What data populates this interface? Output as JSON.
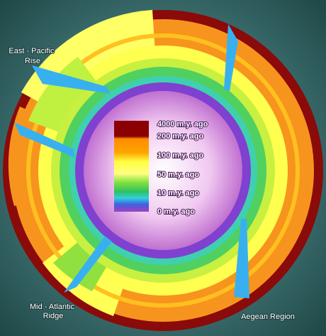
{
  "labels": {
    "east_pacific": [
      "East - Pacific",
      "Rise"
    ],
    "mid_atlantic": [
      "Mid - Atlantic",
      "Ridge"
    ],
    "aegean": "Aegean Region"
  },
  "legend": [
    "4000 m.y. ago",
    "200 m.y. ago",
    "100 m.y. ago",
    "50 m.y. ago",
    "10 m.y. ago",
    "0 m.y. ago"
  ]
}
